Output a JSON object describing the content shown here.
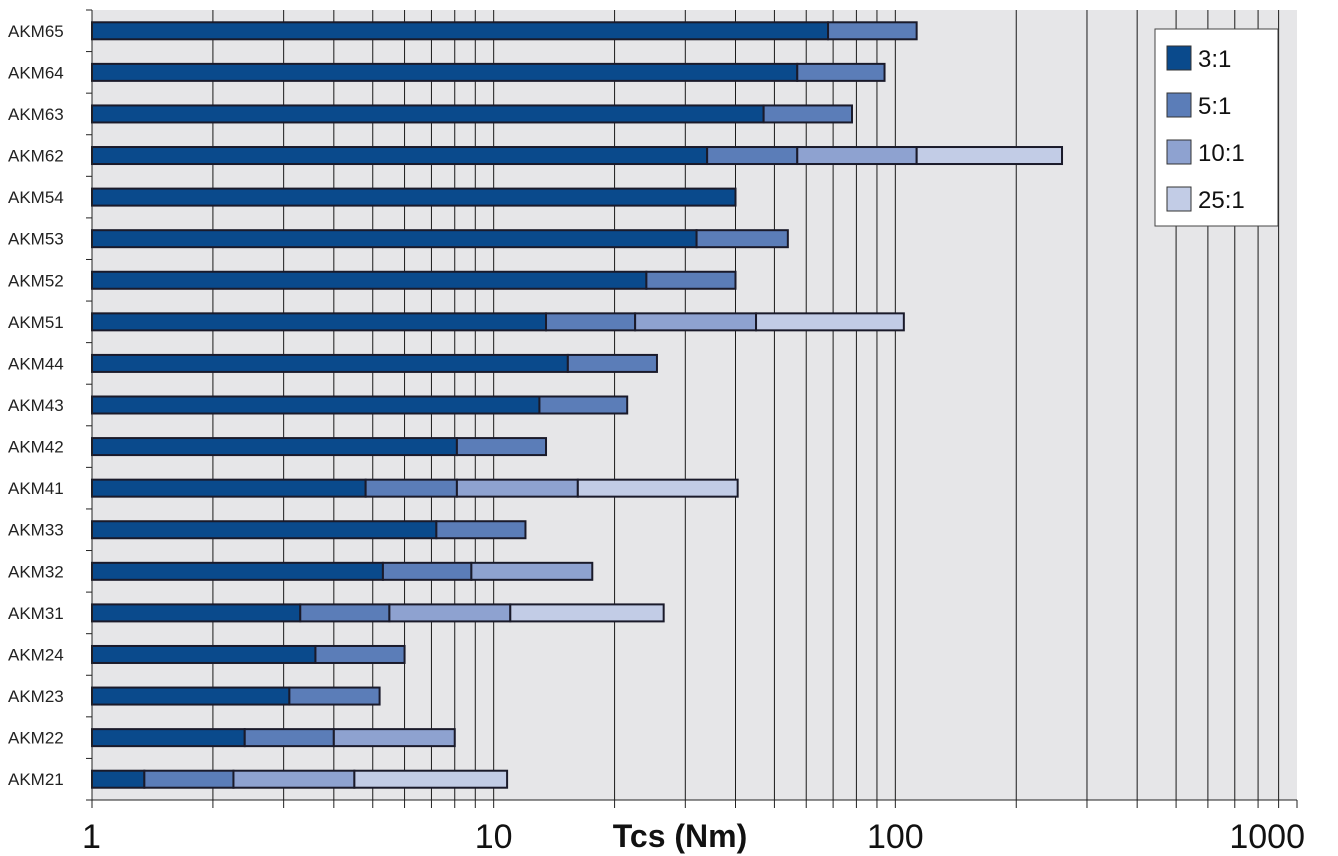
{
  "chart_data": {
    "type": "bar",
    "orientation": "horizontal",
    "stacked": true,
    "x_scale": "log",
    "xlim": [
      1,
      1000
    ],
    "xlabel": "Tcs (Nm)",
    "x_ticks": [
      "1",
      "10",
      "100",
      "1000"
    ],
    "grid": true,
    "legend_position": "top-right",
    "categories": [
      "AKM65",
      "AKM64",
      "AKM63",
      "AKM62",
      "AKM54",
      "AKM53",
      "AKM52",
      "AKM51",
      "AKM44",
      "AKM43",
      "AKM42",
      "AKM41",
      "AKM33",
      "AKM32",
      "AKM31",
      "AKM24",
      "AKM23",
      "AKM22",
      "AKM21"
    ],
    "series": [
      {
        "name": "3:1",
        "color": "#0a4a8c",
        "values": [
          68,
          57,
          47,
          34,
          40,
          32,
          24,
          13.5,
          15.3,
          13,
          8.1,
          4.8,
          7.2,
          5.3,
          3.3,
          3.6,
          3.1,
          2.4,
          1.35
        ]
      },
      {
        "name": "5:1",
        "color": "#5b7db8",
        "values": [
          113,
          94,
          78,
          57,
          null,
          54,
          40,
          22.5,
          25.5,
          21.5,
          13.5,
          8.1,
          12,
          8.8,
          5.5,
          6,
          5.2,
          4,
          2.25
        ]
      },
      {
        "name": "10:1",
        "color": "#8ea2d0",
        "values": [
          null,
          null,
          null,
          113,
          null,
          null,
          null,
          45,
          null,
          null,
          null,
          16.2,
          null,
          17.6,
          11,
          null,
          null,
          8,
          4.5
        ]
      },
      {
        "name": "25:1",
        "color": "#c2cce6",
        "values": [
          null,
          null,
          null,
          260,
          null,
          null,
          null,
          105,
          null,
          null,
          null,
          40.5,
          null,
          null,
          26.5,
          null,
          null,
          null,
          10.8
        ]
      }
    ]
  },
  "colors": {
    "plot_background": "#e6e6e8",
    "grid_line": "#1a1a1a",
    "bar_outline": "#1a1a2a"
  }
}
